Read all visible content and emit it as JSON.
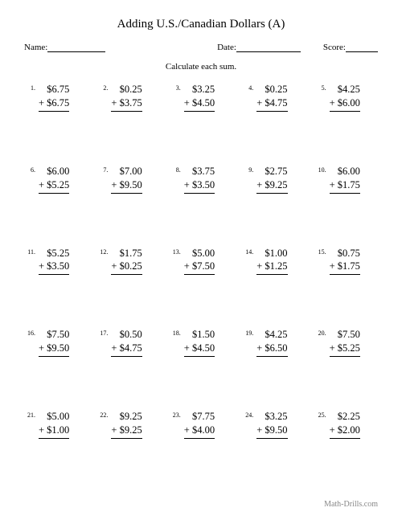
{
  "title": "Adding U.S./Canadian Dollars (A)",
  "labels": {
    "name": "Name:",
    "date": "Date:",
    "score": "Score:"
  },
  "instruction": "Calculate each sum.",
  "footer": "Math-Drills.com",
  "line_widths": {
    "name": 72,
    "date": 80,
    "score": 40
  },
  "problems": [
    {
      "n": "1.",
      "a": "$6.75",
      "b": "+ $6.75"
    },
    {
      "n": "2.",
      "a": "$0.25",
      "b": "+ $3.75"
    },
    {
      "n": "3.",
      "a": "$3.25",
      "b": "+ $4.50"
    },
    {
      "n": "4.",
      "a": "$0.25",
      "b": "+ $4.75"
    },
    {
      "n": "5.",
      "a": "$4.25",
      "b": "+ $6.00"
    },
    {
      "n": "6.",
      "a": "$6.00",
      "b": "+ $5.25"
    },
    {
      "n": "7.",
      "a": "$7.00",
      "b": "+ $9.50"
    },
    {
      "n": "8.",
      "a": "$3.75",
      "b": "+ $3.50"
    },
    {
      "n": "9.",
      "a": "$2.75",
      "b": "+ $9.25"
    },
    {
      "n": "10.",
      "a": "$6.00",
      "b": "+ $1.75"
    },
    {
      "n": "11.",
      "a": "$5.25",
      "b": "+ $3.50"
    },
    {
      "n": "12.",
      "a": "$1.75",
      "b": "+ $0.25"
    },
    {
      "n": "13.",
      "a": "$5.00",
      "b": "+ $7.50"
    },
    {
      "n": "14.",
      "a": "$1.00",
      "b": "+ $1.25"
    },
    {
      "n": "15.",
      "a": "$0.75",
      "b": "+ $1.75"
    },
    {
      "n": "16.",
      "a": "$7.50",
      "b": "+ $9.50"
    },
    {
      "n": "17.",
      "a": "$0.50",
      "b": "+ $4.75"
    },
    {
      "n": "18.",
      "a": "$1.50",
      "b": "+ $4.50"
    },
    {
      "n": "19.",
      "a": "$4.25",
      "b": "+ $6.50"
    },
    {
      "n": "20.",
      "a": "$7.50",
      "b": "+ $5.25"
    },
    {
      "n": "21.",
      "a": "$5.00",
      "b": "+ $1.00"
    },
    {
      "n": "22.",
      "a": "$9.25",
      "b": "+ $9.25"
    },
    {
      "n": "23.",
      "a": "$7.75",
      "b": "+ $4.00"
    },
    {
      "n": "24.",
      "a": "$3.25",
      "b": "+ $9.50"
    },
    {
      "n": "25.",
      "a": "$2.25",
      "b": "+ $2.00"
    }
  ]
}
